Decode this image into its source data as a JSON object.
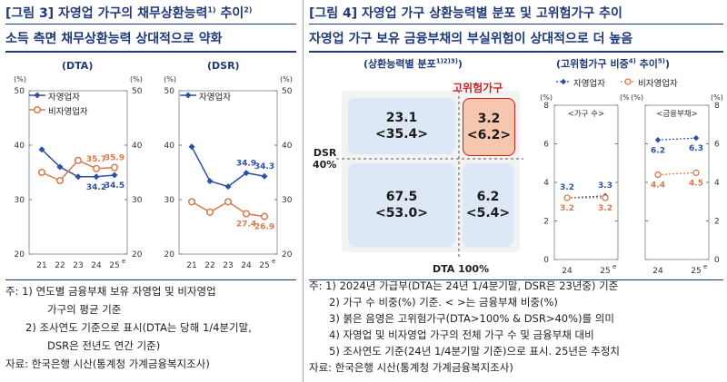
{
  "fig3": {
    "title": "[그림 3] 자영업 가구의 채무상환능력",
    "title_sup": "1)",
    "title_tail": " 추이",
    "title_sup2": "2)",
    "subtitle": "소득 측면 채무상환능력 상대적으로 약화"
  },
  "fig4": {
    "title": "[그림 4] 자영업 가구 상환능력별 분포 및 고위험가구 추이",
    "subtitle": "자영업 가구 보유 금융부채의 부실위험이 상대적으로 더 높음"
  },
  "legend": {
    "self": "자영업자",
    "nonself": "비자영업자"
  },
  "colors": {
    "self": "#2e4fa3",
    "nonself": "#d9794a",
    "box_blue": "#dde8f6",
    "box_red": "#f6c6ae",
    "risk_red": "#cc1f1f"
  },
  "chart_data": [
    {
      "type": "line",
      "title": "(DTA)",
      "unit_left": "(%)",
      "unit_right": "(%)",
      "categories": [
        "21",
        "22",
        "23",
        "24",
        "25"
      ],
      "cat_sup": [
        "",
        "",
        "",
        "",
        "e"
      ],
      "ylim": [
        20,
        50
      ],
      "yticks": [
        "20",
        "30",
        "40",
        "50"
      ],
      "series": [
        {
          "name": "자영업자",
          "values": [
            39.2,
            36.0,
            34.2,
            34.2,
            34.5
          ],
          "labels": [
            "",
            "",
            "",
            "34.2",
            "34.5"
          ]
        },
        {
          "name": "비자영업자",
          "values": [
            35.0,
            33.5,
            37.2,
            35.7,
            35.9
          ],
          "labels": [
            "",
            "",
            "",
            "35.7",
            "35.9"
          ]
        }
      ]
    },
    {
      "type": "line",
      "title": "(DSR)",
      "unit_left": "(%)",
      "unit_right": "(%)",
      "categories": [
        "21",
        "22",
        "23",
        "24",
        "25"
      ],
      "cat_sup": [
        "",
        "",
        "",
        "",
        "e"
      ],
      "ylim": [
        20,
        50
      ],
      "yticks": [
        "20",
        "30",
        "40",
        "50"
      ],
      "series": [
        {
          "name": "자영업자",
          "values": [
            39.7,
            33.4,
            32.4,
            34.9,
            34.3
          ],
          "labels": [
            "",
            "",
            "",
            "34.9",
            "34.3"
          ]
        },
        {
          "name": "비자영업자",
          "values": [
            29.6,
            27.7,
            29.6,
            27.4,
            26.9
          ],
          "labels": [
            "",
            "",
            "",
            "27.4",
            "26.9"
          ]
        }
      ]
    },
    {
      "type": "table",
      "title": "(상환능력별 분포",
      "title_sup": "1)2)3)",
      "title_tail": ")",
      "risk_label": "고위험가구",
      "dsr_label": "DSR",
      "dsr_value": "40%",
      "dta_label": "DTA 100%",
      "cells": [
        {
          "top": "23.1",
          "bottom": "<35.4>"
        },
        {
          "top": "3.2",
          "bottom": "<6.2>"
        },
        {
          "top": "67.5",
          "bottom": "<53.0>"
        },
        {
          "top": "6.2",
          "bottom": "<5.4>"
        }
      ]
    },
    {
      "type": "line",
      "title": "(고위험가구 비중",
      "title_sup": "4)",
      "title_tail": " 추이",
      "title_sup2": "5)",
      "title_close": ")",
      "panels": [
        {
          "subtitle": "<가구 수>",
          "unit_left": "(%)",
          "unit_right": "(%)",
          "categories": [
            "24",
            "25"
          ],
          "cat_sup": [
            "",
            "e"
          ],
          "ylim": [
            0,
            8
          ],
          "yticks": [
            "0",
            "2",
            "4",
            "6",
            "8"
          ],
          "series": [
            {
              "name": "자영업자",
              "values": [
                3.2,
                3.3
              ],
              "labels": [
                "3.2",
                "3.3"
              ]
            },
            {
              "name": "비자영업자",
              "values": [
                3.2,
                3.2
              ],
              "labels": [
                "3.2",
                "3.2"
              ]
            }
          ]
        },
        {
          "subtitle": "<금융부채>",
          "unit_left": "(%)",
          "unit_right": "(%)",
          "categories": [
            "24",
            "25"
          ],
          "cat_sup": [
            "",
            "e"
          ],
          "ylim": [
            0,
            8
          ],
          "yticks": [
            "0",
            "2",
            "4",
            "6",
            "8"
          ],
          "series": [
            {
              "name": "자영업자",
              "values": [
                6.2,
                6.3
              ],
              "labels": [
                "6.2",
                "6.3"
              ]
            },
            {
              "name": "비자영업자",
              "values": [
                4.4,
                4.5
              ],
              "labels": [
                "4.4",
                "4.5"
              ]
            }
          ]
        }
      ]
    }
  ],
  "notes_left": [
    "주: 1) 연도별 금융부채 보유 자영업 및 비자영업",
    "가구의 평균 기준",
    "2) 조사연도 기준으로 표시(DTA는 당해 1/4분기말,",
    "DSR은 전년도 연간 기준)",
    "자료: 한국은행 시산(통계청 가계금융복지조사)"
  ],
  "notes_right": [
    "주: 1) 2024년 가급부(DTA는 24년 1/4분기말, DSR은 23년중) 기준",
    "2) 가구 수 비중(%) 기준. <    >는 금융부채 비중(%)",
    "3) 붉은 음영은 고위험가구(DTA>100% & DSR>40%)를 의미",
    "4) 자영업 및 비자영업 가구의 전체 가구 수 및 금융부채 대비",
    "5) 조사연도 기준(24년 1/4분기말 기준)으로 표시. 25년은 추정치",
    "자료: 한국은행 시산(통계청 가계금융복지조사)"
  ]
}
